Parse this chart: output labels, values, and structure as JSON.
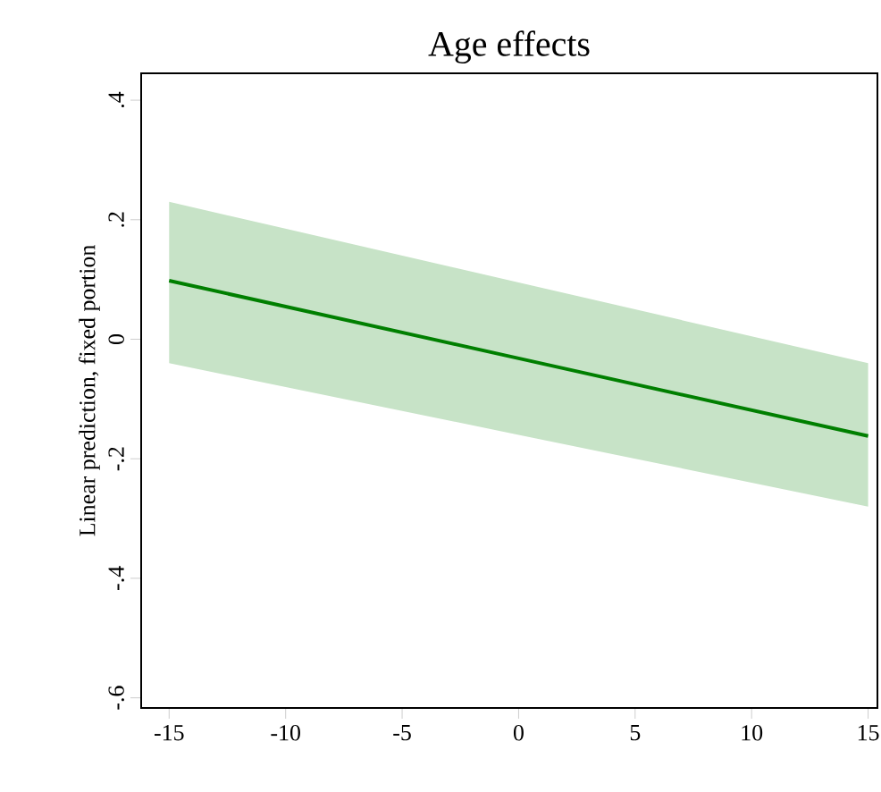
{
  "chart_data": {
    "type": "line",
    "title": "Age effects",
    "ylabel": "Linear prediction, fixed portion",
    "x": [
      -15,
      0,
      15
    ],
    "series": [
      {
        "color": "#007f00",
        "values": [
          0.098,
          -0.032,
          -0.162
        ],
        "lower": [
          -0.04,
          -0.16,
          -0.28
        ],
        "upper": [
          0.23,
          0.095,
          -0.04
        ]
      }
    ],
    "xlim": [
      -16.2,
      15.4
    ],
    "ylim": [
      -0.617,
      0.445
    ],
    "xticks": [
      -15,
      -10,
      -5,
      0,
      5,
      10,
      15
    ],
    "yticks": [
      {
        "value": -0.6,
        "label": "-.6"
      },
      {
        "value": -0.4,
        "label": "-.4"
      },
      {
        "value": -0.2,
        "label": "-.2"
      },
      0,
      {
        "value": 0.2,
        "label": ".2"
      },
      {
        "value": 0.4,
        "label": ".4"
      }
    ],
    "marker": "none",
    "line_style": "solid"
  }
}
